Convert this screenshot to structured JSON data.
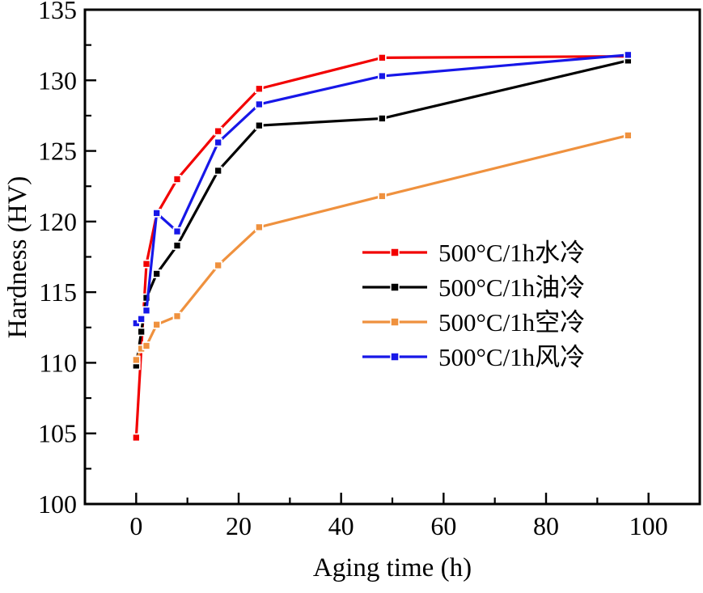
{
  "figure": {
    "xlabel": "Aging time (h)",
    "ylabel": "Hardness (HV)"
  },
  "chart_data": {
    "type": "line",
    "title": "",
    "xlabel": "Aging time (h)",
    "ylabel": "Hardness (HV)",
    "xlim": [
      -10,
      110
    ],
    "ylim": [
      100,
      135
    ],
    "x_major_ticks": [
      0,
      20,
      40,
      60,
      80,
      100
    ],
    "x_minor_ticks": [
      10,
      30,
      50,
      70,
      90,
      110
    ],
    "y_major_ticks": [
      100,
      105,
      110,
      115,
      120,
      125,
      130,
      135
    ],
    "y_minor_ticks": [
      102.5,
      107.5,
      112.5,
      117.5,
      122.5,
      127.5,
      132.5
    ],
    "grid": false,
    "background": "#ffffff",
    "axis_color": "#000000",
    "legend": {
      "position": "inside-right-middle",
      "border": false
    },
    "x": [
      0,
      1,
      2,
      4,
      8,
      16,
      24,
      48,
      96
    ],
    "series": [
      {
        "key": "water-cooled",
        "name": "500°C/1h水冷",
        "color": "#f20000",
        "line": "solid",
        "marker": "square",
        "values": [
          104.7,
          111.0,
          117.0,
          120.5,
          123.0,
          126.4,
          129.4,
          131.6,
          131.7
        ]
      },
      {
        "key": "oil-cooled",
        "name": "500°C/1h油冷",
        "color": "#000000",
        "line": "solid",
        "marker": "square",
        "values": [
          109.8,
          112.2,
          114.6,
          116.3,
          118.3,
          123.6,
          126.8,
          127.3,
          131.4
        ]
      },
      {
        "key": "air-cooled",
        "name": "500°C/1h空冷",
        "color": "#ef913e",
        "line": "solid",
        "marker": "square",
        "values": [
          110.2,
          111.0,
          111.2,
          112.7,
          113.3,
          116.9,
          119.6,
          121.8,
          126.1
        ]
      },
      {
        "key": "wind-cooled",
        "name": "500°C/1h风冷",
        "color": "#1717e8",
        "line": "solid",
        "marker": "square",
        "values": [
          112.8,
          113.1,
          113.7,
          120.6,
          119.3,
          125.6,
          128.3,
          130.3,
          131.8
        ]
      }
    ]
  }
}
